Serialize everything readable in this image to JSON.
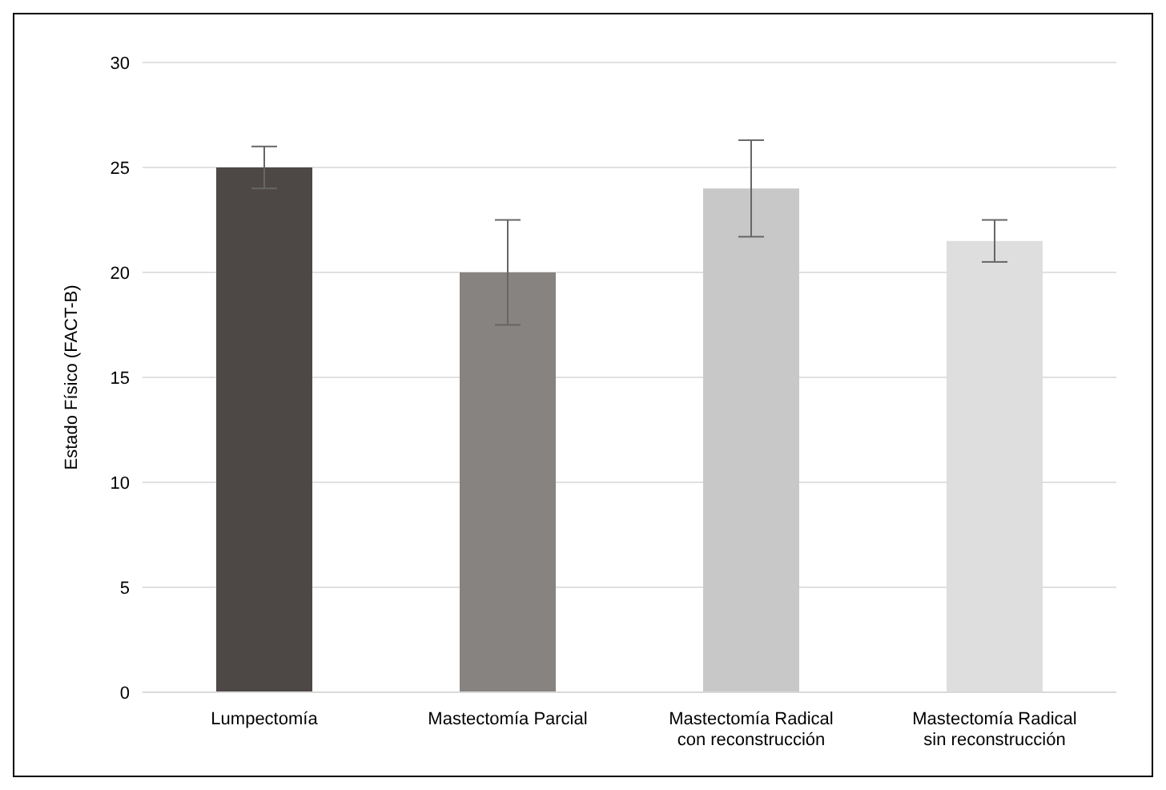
{
  "chart_data": {
    "type": "bar",
    "ylabel": "Estado Físico (FACT-B)",
    "categories": [
      "Lumpectomía",
      "Mastectomía Parcial",
      "Mastectomía Radical con reconstrucción",
      "Mastectomía Radical sin reconstrucción"
    ],
    "values": [
      25,
      20,
      24,
      21.5
    ],
    "colors": [
      "#4d4846",
      "#878381",
      "#c8c8c8",
      "#dedede"
    ],
    "errors": [
      1,
      2.5,
      2.3,
      1
    ],
    "ylim": [
      0,
      30
    ],
    "yticks": [
      0,
      5,
      10,
      15,
      20,
      25,
      30
    ],
    "grid": "y"
  }
}
